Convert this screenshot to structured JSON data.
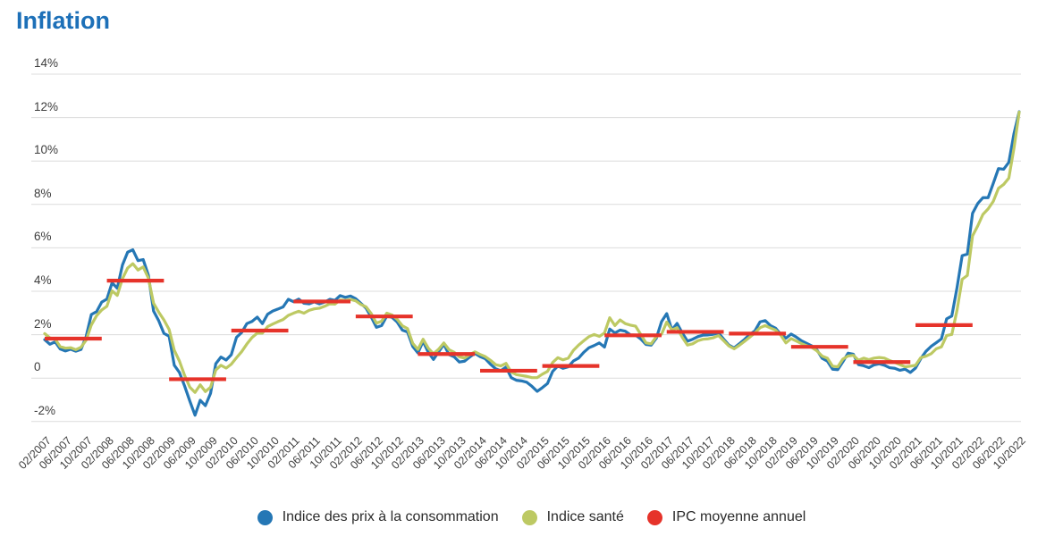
{
  "page_title": "Inflation",
  "chart_data": {
    "type": "line",
    "title": "Inflation",
    "x_start": "02/2007",
    "x_end": "10/2022",
    "x_interval": "monthly",
    "x_tick_labels": [
      "02/2007",
      "06/2007",
      "10/2007",
      "02/2008",
      "06/2008",
      "10/2008",
      "02/2009",
      "06/2009",
      "10/2009",
      "02/2010",
      "06/2010",
      "10/2010",
      "02/2011",
      "06/2011",
      "10/2011",
      "02/2012",
      "06/2012",
      "10/2012",
      "02/2013",
      "06/2013",
      "10/2013",
      "02/2014",
      "06/2014",
      "10/2014",
      "02/2015",
      "06/2015",
      "10/2015",
      "02/2016",
      "06/2016",
      "10/2016",
      "02/2017",
      "06/2017",
      "10/2017",
      "02/2018",
      "06/2018",
      "10/2018",
      "02/2019",
      "06/2019",
      "10/2019",
      "02/2020",
      "06/2020",
      "10/2020",
      "02/2021",
      "06/2021",
      "10/2021",
      "02/2022",
      "06/2022",
      "10/2022"
    ],
    "y_tick_labels": [
      "14%",
      "12%",
      "10%",
      "8%",
      "6%",
      "4%",
      "2%",
      "0",
      "-2%"
    ],
    "grid_values": [
      14,
      12,
      10,
      8,
      6,
      4,
      2,
      0,
      -2
    ],
    "ylim": [
      -2.9,
      14.6
    ],
    "grid_color": "#dcdcdc",
    "title_color": "#1d70b8",
    "series": [
      {
        "name": "Indice des prix à la consommation",
        "color": "#2577b5",
        "values": [
          1.77,
          1.56,
          1.67,
          1.34,
          1.25,
          1.33,
          1.24,
          1.32,
          1.92,
          2.93,
          3.06,
          3.5,
          3.64,
          4.39,
          4.14,
          5.21,
          5.8,
          5.91,
          5.41,
          5.46,
          4.74,
          3.09,
          2.64,
          2.06,
          1.93,
          0.59,
          0.26,
          -0.37,
          -1.06,
          -1.71,
          -1.02,
          -1.27,
          -0.7,
          0.66,
          0.97,
          0.83,
          1.08,
          1.88,
          2.1,
          2.51,
          2.61,
          2.81,
          2.51,
          2.94,
          3.09,
          3.18,
          3.28,
          3.63,
          3.52,
          3.64,
          3.45,
          3.42,
          3.51,
          3.42,
          3.5,
          3.63,
          3.58,
          3.8,
          3.72,
          3.78,
          3.66,
          3.44,
          3.22,
          2.81,
          2.34,
          2.42,
          2.86,
          2.8,
          2.58,
          2.21,
          2.12,
          1.46,
          1.16,
          1.69,
          1.19,
          0.86,
          1.21,
          1.56,
          1.08,
          0.98,
          0.74,
          0.78,
          0.97,
          1.14,
          0.99,
          0.89,
          0.64,
          0.43,
          0.34,
          0.51,
          0.02,
          -0.1,
          -0.13,
          -0.19,
          -0.38,
          -0.61,
          -0.44,
          -0.25,
          0.31,
          0.56,
          0.45,
          0.52,
          0.79,
          0.92,
          1.19,
          1.4,
          1.5,
          1.62,
          1.43,
          2.26,
          2.08,
          2.21,
          2.16,
          1.99,
          1.98,
          1.8,
          1.55,
          1.52,
          1.84,
          2.6,
          2.97,
          2.22,
          2.52,
          2.08,
          1.7,
          1.79,
          1.91,
          1.98,
          1.99,
          2.02,
          2.08,
          1.79,
          1.52,
          1.39,
          1.58,
          1.78,
          2.01,
          2.17,
          2.59,
          2.65,
          2.42,
          2.3,
          2.01,
          1.84,
          2.03,
          1.89,
          1.72,
          1.6,
          1.48,
          1.29,
          0.91,
          0.78,
          0.41,
          0.39,
          0.76,
          1.15,
          1.1,
          0.62,
          0.57,
          0.48,
          0.61,
          0.66,
          0.59,
          0.48,
          0.45,
          0.36,
          0.41,
          0.26,
          0.46,
          0.89,
          1.23,
          1.46,
          1.63,
          1.81,
          2.73,
          2.86,
          4.16,
          5.64,
          5.71,
          7.59,
          8.04,
          8.31,
          8.31,
          8.97,
          9.65,
          9.62,
          9.94,
          11.27,
          12.27
        ]
      },
      {
        "name": "Indice santé",
        "color": "#bdc963",
        "values": [
          2.05,
          1.85,
          1.8,
          1.45,
          1.38,
          1.4,
          1.31,
          1.42,
          1.75,
          2.45,
          2.87,
          3.14,
          3.31,
          4.02,
          3.81,
          4.58,
          5.07,
          5.27,
          4.98,
          5.12,
          4.61,
          3.45,
          3.04,
          2.68,
          2.24,
          1.28,
          0.78,
          0.12,
          -0.42,
          -0.66,
          -0.31,
          -0.62,
          -0.42,
          0.37,
          0.59,
          0.46,
          0.64,
          0.94,
          1.22,
          1.57,
          1.87,
          2.07,
          2.07,
          2.37,
          2.49,
          2.6,
          2.7,
          2.89,
          2.99,
          3.08,
          2.99,
          3.12,
          3.19,
          3.22,
          3.31,
          3.42,
          3.41,
          3.6,
          3.58,
          3.62,
          3.56,
          3.39,
          3.28,
          2.97,
          2.53,
          2.62,
          2.99,
          2.91,
          2.71,
          2.41,
          2.28,
          1.6,
          1.32,
          1.79,
          1.38,
          1.12,
          1.33,
          1.62,
          1.31,
          1.19,
          0.98,
          0.92,
          1.08,
          1.21,
          1.09,
          0.99,
          0.82,
          0.62,
          0.56,
          0.68,
          0.28,
          0.16,
          0.12,
          0.08,
          0.02,
          0.02,
          0.18,
          0.31,
          0.72,
          0.94,
          0.84,
          0.92,
          1.28,
          1.52,
          1.72,
          1.91,
          2.01,
          1.92,
          2.08,
          2.78,
          2.42,
          2.68,
          2.51,
          2.44,
          2.39,
          2.01,
          1.62,
          1.58,
          1.91,
          2.02,
          2.58,
          2.22,
          2.32,
          1.88,
          1.52,
          1.58,
          1.72,
          1.79,
          1.81,
          1.86,
          1.96,
          1.72,
          1.48,
          1.35,
          1.51,
          1.69,
          1.88,
          2.08,
          2.32,
          2.42,
          2.31,
          2.21,
          1.98,
          1.62,
          1.82,
          1.71,
          1.59,
          1.49,
          1.41,
          1.25,
          1.01,
          0.92,
          0.55,
          0.52,
          0.88,
          1.02,
          1.05,
          0.82,
          0.92,
          0.85,
          0.92,
          0.95,
          0.92,
          0.81,
          0.72,
          0.62,
          0.52,
          0.55,
          0.59,
          0.94,
          1.01,
          1.12,
          1.35,
          1.44,
          1.96,
          2.01,
          3.12,
          4.55,
          4.73,
          6.55,
          7.01,
          7.54,
          7.79,
          8.14,
          8.74,
          8.92,
          9.21,
          10.6,
          12.25
        ]
      }
    ],
    "annual_average": {
      "name": "IPC moyenne annuel",
      "color": "#e6332a",
      "values": [
        {
          "year": 2007,
          "value": 1.82
        },
        {
          "year": 2008,
          "value": 4.49
        },
        {
          "year": 2009,
          "value": -0.05
        },
        {
          "year": 2010,
          "value": 2.19
        },
        {
          "year": 2011,
          "value": 3.53
        },
        {
          "year": 2012,
          "value": 2.84
        },
        {
          "year": 2013,
          "value": 1.11
        },
        {
          "year": 2014,
          "value": 0.34
        },
        {
          "year": 2015,
          "value": 0.56
        },
        {
          "year": 2016,
          "value": 1.97
        },
        {
          "year": 2017,
          "value": 2.13
        },
        {
          "year": 2018,
          "value": 2.05
        },
        {
          "year": 2019,
          "value": 1.44
        },
        {
          "year": 2020,
          "value": 0.74
        },
        {
          "year": 2021,
          "value": 2.44
        }
      ]
    },
    "legend_position": "bottom-center",
    "grid": true
  },
  "legend": {
    "items": [
      {
        "label": "Indice des prix à la consommation",
        "color": "#2577b5"
      },
      {
        "label": "Indice santé",
        "color": "#bdc963"
      },
      {
        "label": "IPC moyenne annuel",
        "color": "#e6332a"
      }
    ]
  }
}
